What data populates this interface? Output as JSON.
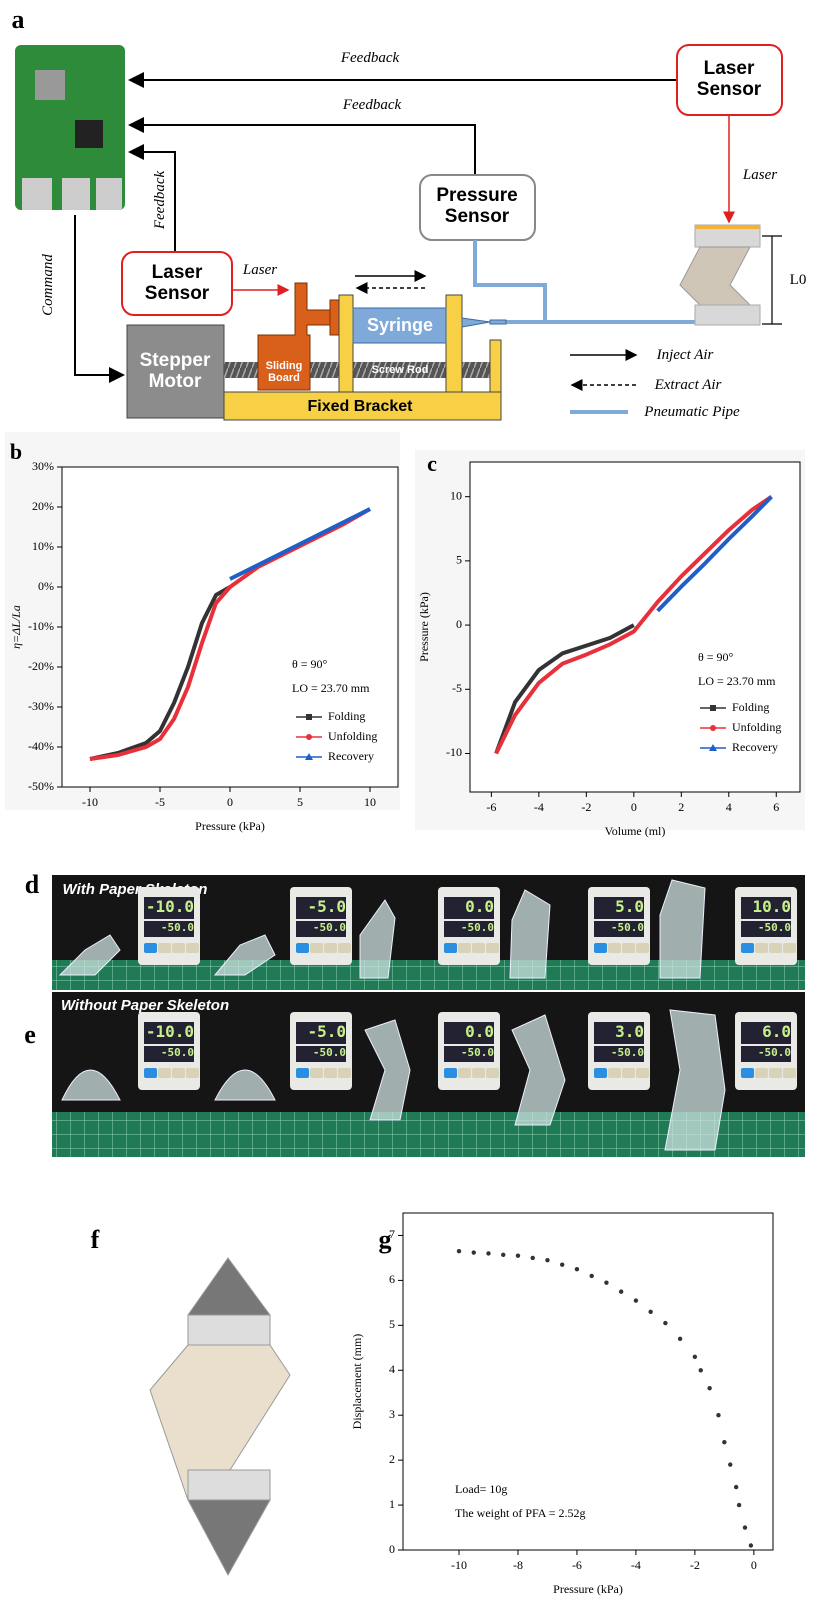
{
  "panel_labels": [
    "a",
    "b",
    "c",
    "d",
    "e",
    "f",
    "g"
  ],
  "diagram": {
    "feedback_top": "Feedback",
    "feedback_middle": "Feedback",
    "feedback_left": "Feedback",
    "laser_sensor_right": "Laser Sensor",
    "laser_sensor_left": "Laser Sensor",
    "laser_right": "Laser",
    "laser_left": "Laser",
    "pressure_sensor": "Pressure Sensor",
    "command": "Command",
    "stepper_motor": "Stepper Motor",
    "sliding_board": "Sliding Board",
    "syringe": "Syringe",
    "screw_rod": "Screw Rod",
    "fixed_bracket": "Fixed Bracket",
    "length": "L0",
    "legend": [
      "Inject Air",
      "Extract Air",
      "Pneumatic Pipe"
    ]
  },
  "chart_data": [
    {
      "type": "line",
      "x_label": "Pressure (kPa)",
      "y_label": "η=ΔL/La",
      "annotations": [
        "θ = 90°",
        "LO = 23.70 mm"
      ],
      "x": [
        -10,
        -8,
        -6,
        -5,
        -4,
        -3,
        -2,
        -1,
        0,
        2,
        4,
        6,
        8,
        10
      ],
      "series": [
        {
          "name": "Folding",
          "color": "#333333",
          "marker": "square",
          "values": [
            -43,
            -41.5,
            -39,
            -36,
            -29,
            -20,
            -9,
            -2,
            0,
            null,
            null,
            null,
            null,
            null
          ]
        },
        {
          "name": "Unfolding",
          "color": "#e8303a",
          "marker": "circle",
          "values": [
            -43,
            -42,
            -40,
            -38,
            -33,
            -25,
            -14,
            -4,
            0,
            5,
            8.5,
            12,
            15.5,
            19.5
          ]
        },
        {
          "name": "Recovery",
          "color": "#1f5fc8",
          "marker": "triangle",
          "values": [
            null,
            null,
            null,
            null,
            null,
            null,
            null,
            null,
            2,
            5.5,
            9,
            12.5,
            16,
            19.5
          ]
        }
      ],
      "xlim": [
        -12,
        12
      ],
      "xticks": [
        -10,
        -5,
        0,
        5,
        10
      ],
      "ylim": [
        -50,
        30
      ],
      "yticks": [
        {
          "value": -50,
          "label": "-50%"
        },
        {
          "value": -40,
          "label": "-40%"
        },
        {
          "value": -30,
          "label": "-30%"
        },
        {
          "value": -20,
          "label": "-20%"
        },
        {
          "value": -10,
          "label": "-10%"
        },
        {
          "value": 0,
          "label": "0%"
        },
        {
          "value": 10,
          "label": "10%"
        },
        {
          "value": 20,
          "label": "20%"
        },
        {
          "value": 30,
          "label": "30%"
        }
      ]
    },
    {
      "type": "line",
      "x_label": "Volume (ml)",
      "y_label": "Pressure (kPa)",
      "annotations": [
        "θ = 90°",
        "LO = 23.70 mm"
      ],
      "x": [
        -5.8,
        -5,
        -4,
        -3,
        -2,
        -1,
        0,
        1,
        2,
        3,
        4,
        5,
        5.8
      ],
      "series": [
        {
          "name": "Folding",
          "color": "#333333",
          "marker": "square",
          "values": [
            -10,
            -6,
            -3.5,
            -2.2,
            -1.6,
            -1,
            0,
            null,
            null,
            null,
            null,
            null,
            null
          ]
        },
        {
          "name": "Unfolding",
          "color": "#e8303a",
          "marker": "circle",
          "values": [
            -10,
            -7,
            -4.5,
            -3,
            -2.3,
            -1.5,
            -0.5,
            1.8,
            3.8,
            5.6,
            7.4,
            9,
            10
          ]
        },
        {
          "name": "Recovery",
          "color": "#1f5fc8",
          "marker": "triangle",
          "values": [
            null,
            null,
            null,
            null,
            null,
            null,
            null,
            1.1,
            3,
            4.8,
            6.7,
            8.5,
            10
          ]
        }
      ],
      "xlim": [
        -6.9,
        7
      ],
      "xticks": [
        -6,
        -4,
        -2,
        0,
        2,
        4,
        6
      ],
      "ylim": [
        -13,
        12.7
      ],
      "yticks": [
        -10,
        -5,
        0,
        5,
        10
      ]
    },
    {
      "type": "scatter",
      "x_label": "Pressure (kPa)",
      "y_label": "Displacement (mm)",
      "color": "#333333",
      "annotations": [
        "Load= 10g",
        "The weight of PFA = 2.52g"
      ],
      "x": [
        -10,
        -9.5,
        -9,
        -8.5,
        -8,
        -7.5,
        -7,
        -6.5,
        -6,
        -5.5,
        -5,
        -4.5,
        -4,
        -3.5,
        -3,
        -2.5,
        -2,
        -1.8,
        -1.5,
        -1.2,
        -1,
        -0.8,
        -0.6,
        -0.5,
        -0.3,
        -0.1
      ],
      "values": [
        6.65,
        6.62,
        6.6,
        6.57,
        6.55,
        6.5,
        6.45,
        6.35,
        6.25,
        6.1,
        5.95,
        5.75,
        5.55,
        5.3,
        5.05,
        4.7,
        4.3,
        4.0,
        3.6,
        3.0,
        2.4,
        1.9,
        1.4,
        1.0,
        0.5,
        0.1
      ],
      "xlim": [
        -11.9,
        0.65
      ],
      "xticks": [
        -10,
        -8,
        -6,
        -4,
        -2,
        0
      ],
      "ylim": [
        0,
        7.5
      ],
      "yticks": [
        0,
        1,
        2,
        3,
        4,
        5,
        6,
        7
      ]
    }
  ],
  "photos": [
    {
      "title": "With Paper Skeleton",
      "readings": [
        [
          "-10.0",
          "-50.0"
        ],
        [
          "-5.0",
          "-50.0"
        ],
        [
          "0.0",
          "-50.0"
        ],
        [
          "5.0",
          "-50.0"
        ],
        [
          "10.0",
          "-50.0"
        ]
      ]
    },
    {
      "title": "Without Paper Skeleton",
      "readings": [
        [
          "-10.0",
          "-50.0"
        ],
        [
          "-5.0",
          "-50.0"
        ],
        [
          "0.0",
          "-50.0"
        ],
        [
          "3.0",
          "-50.0"
        ],
        [
          "6.0",
          "-50.0"
        ]
      ]
    }
  ]
}
